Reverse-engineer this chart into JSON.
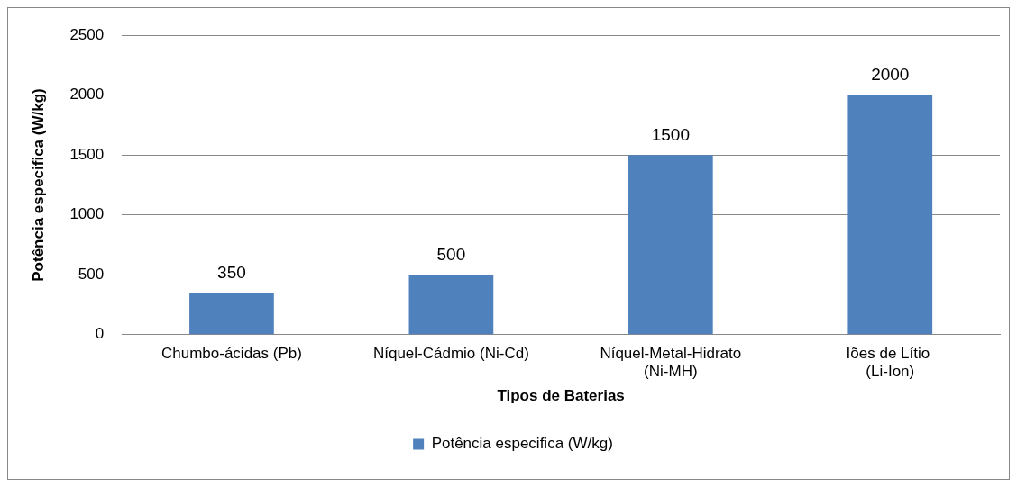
{
  "chart_data": {
    "type": "bar",
    "xlabel": "Tipos de Baterias",
    "ylabel": "Potência especifica (W/kg)",
    "categories": [
      "Chumbo-ácidas (Pb)",
      "Níquel-Cádmio (Ni-Cd)",
      "Níquel-Metal-Hidrato (Ni-MH)",
      "Iões de Lítio  (Li-Ion)"
    ],
    "series": [
      {
        "name": "Potência especifica (W/kg)",
        "color": "#4f81bd",
        "values": [
          350,
          500,
          1500,
          2000
        ]
      }
    ],
    "ylim": [
      0,
      2500
    ],
    "yticks": [
      0,
      500,
      1000,
      1500,
      2000,
      2500
    ],
    "grid": "y",
    "legend": "bottom",
    "data_labels": true
  }
}
